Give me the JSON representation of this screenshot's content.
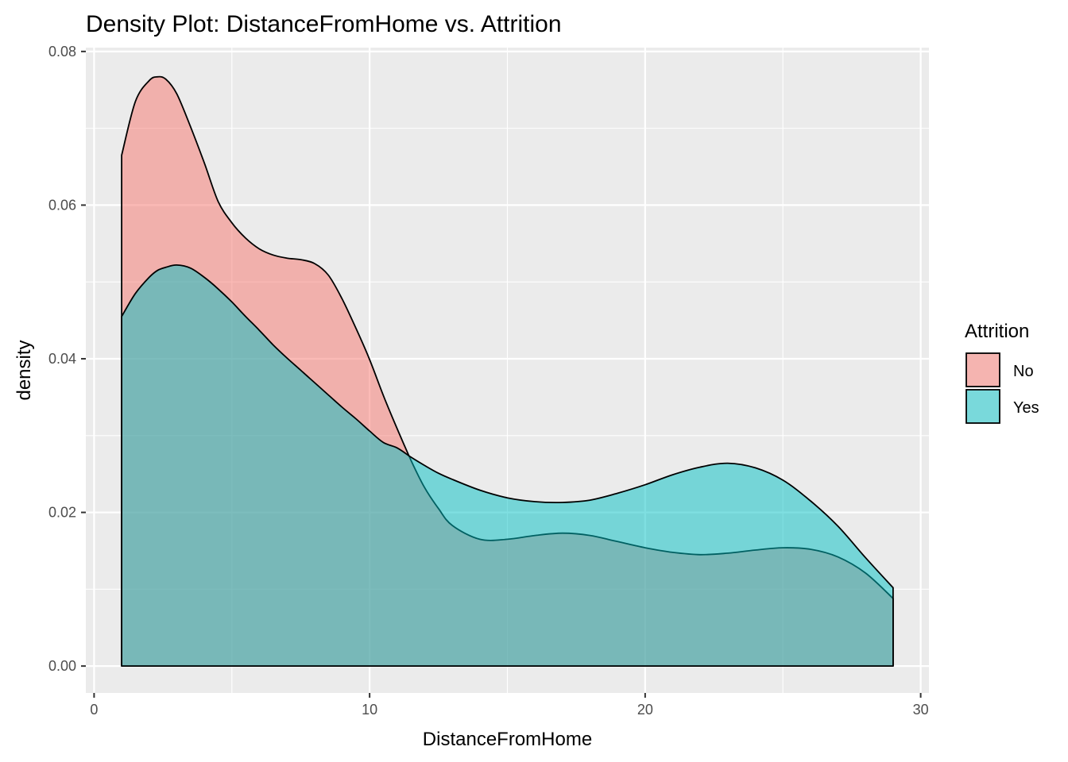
{
  "chart_data": {
    "type": "area",
    "title": "Density Plot: DistanceFromHome vs. Attrition",
    "xlabel": "DistanceFromHome",
    "ylabel": "density",
    "xlim": [
      -0.3,
      30.3
    ],
    "ylim": [
      -0.0035,
      0.0805
    ],
    "x_ticks": [
      0,
      10,
      20,
      30
    ],
    "y_ticks": [
      0.0,
      0.02,
      0.04,
      0.06,
      0.08
    ],
    "x_tick_labels": [
      "0",
      "10",
      "20",
      "30"
    ],
    "y_tick_labels": [
      "0.00",
      "0.02",
      "0.04",
      "0.06",
      "0.08"
    ],
    "grid": true,
    "legend_position": "right",
    "legend": {
      "title": "Attrition"
    },
    "x": [
      1,
      1.5,
      2,
      2.3,
      2.6,
      3,
      3.5,
      4,
      4.5,
      5,
      5.5,
      6,
      6.5,
      7,
      7.5,
      8,
      8.5,
      9,
      9.5,
      10,
      10.5,
      11,
      11.5,
      12,
      12.5,
      13,
      14,
      15,
      16,
      17,
      18,
      19,
      20,
      21,
      22,
      23,
      24,
      25,
      26,
      27,
      28,
      29
    ],
    "series": [
      {
        "name": "No",
        "color": "#F8766D",
        "values": [
          0.0665,
          0.0735,
          0.0762,
          0.0767,
          0.0764,
          0.0745,
          0.0702,
          0.0655,
          0.0605,
          0.0577,
          0.0557,
          0.0543,
          0.0535,
          0.0531,
          0.0529,
          0.0524,
          0.0509,
          0.0478,
          0.044,
          0.0399,
          0.0352,
          0.0309,
          0.0268,
          0.0232,
          0.0205,
          0.0183,
          0.0165,
          0.0165,
          0.017,
          0.0173,
          0.017,
          0.0162,
          0.0154,
          0.0148,
          0.0145,
          0.0147,
          0.0151,
          0.0154,
          0.0152,
          0.0142,
          0.0121,
          0.0088
        ]
      },
      {
        "name": "Yes",
        "color": "#00BFC4",
        "values": [
          0.0455,
          0.0485,
          0.0506,
          0.0515,
          0.0519,
          0.0522,
          0.0518,
          0.0506,
          0.0491,
          0.0474,
          0.0455,
          0.0437,
          0.0418,
          0.0401,
          0.0385,
          0.0369,
          0.0353,
          0.0337,
          0.0322,
          0.0306,
          0.0291,
          0.0284,
          0.0272,
          0.0261,
          0.0251,
          0.0243,
          0.0229,
          0.0219,
          0.0214,
          0.0213,
          0.0216,
          0.0225,
          0.0236,
          0.0249,
          0.0259,
          0.0264,
          0.0258,
          0.0242,
          0.0215,
          0.0182,
          0.0141,
          0.0102
        ]
      }
    ]
  }
}
